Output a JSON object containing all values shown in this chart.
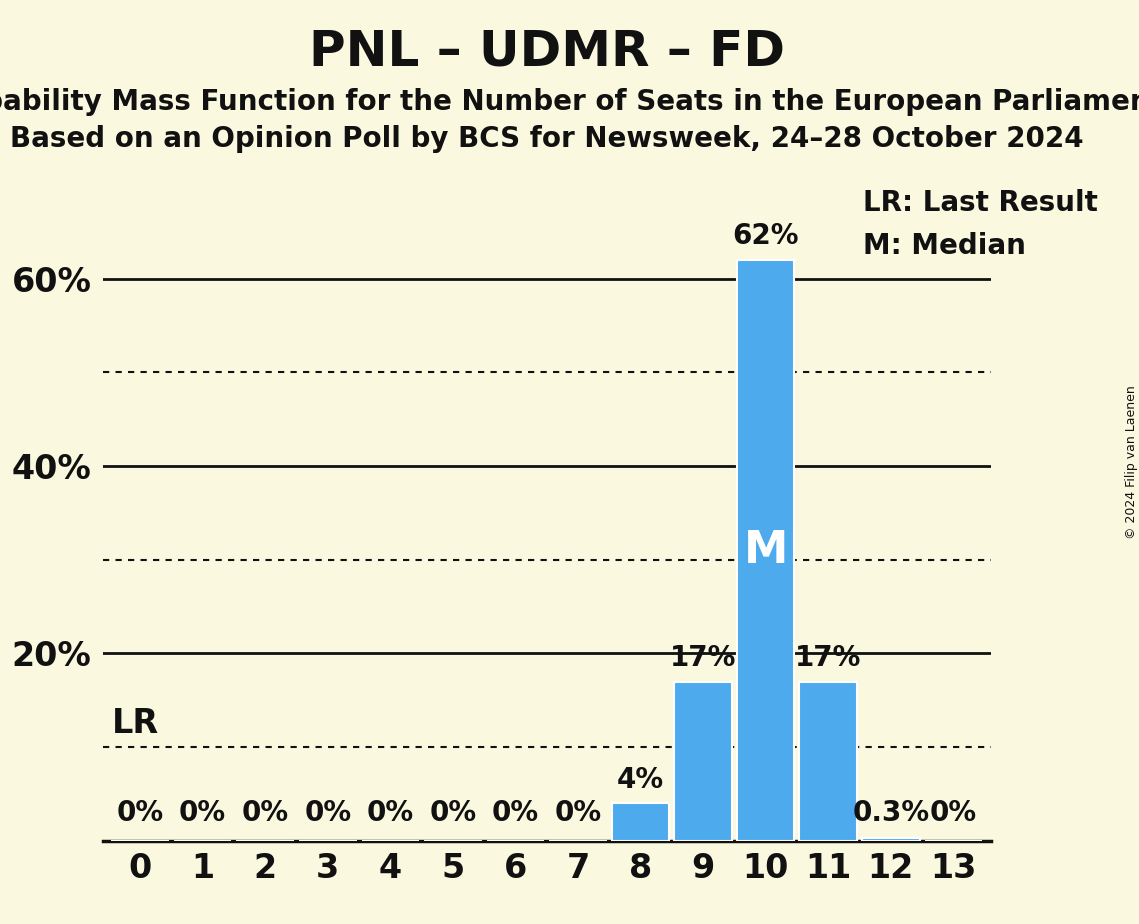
{
  "title": "PNL – UDMR – FD",
  "subtitle1": "Probability Mass Function for the Number of Seats in the European Parliament",
  "subtitle2": "Based on an Opinion Poll by BCS for Newsweek, 24–28 October 2024",
  "copyright": "© 2024 Filip van Laenen",
  "categories": [
    0,
    1,
    2,
    3,
    4,
    5,
    6,
    7,
    8,
    9,
    10,
    11,
    12,
    13
  ],
  "values": [
    0,
    0,
    0,
    0,
    0,
    0,
    0,
    0,
    4,
    17,
    62,
    17,
    0.3,
    0
  ],
  "bar_color": "#4DAAED",
  "background_color": "#FAF9E0",
  "median_seat": 10,
  "lr_seat": 9,
  "ylim": [
    0,
    70
  ],
  "solid_lines": [
    20,
    40,
    60
  ],
  "dotted_lines": [
    10,
    30,
    50
  ],
  "legend_lr": "LR: Last Result",
  "legend_m": "M: Median",
  "bar_labels": {
    "0": "0%",
    "1": "0%",
    "2": "0%",
    "3": "0%",
    "4": "0%",
    "5": "0%",
    "6": "0%",
    "7": "0%",
    "8": "4%",
    "9": "17%",
    "10": "62%",
    "11": "17%",
    "12": "0.3%",
    "13": "0%"
  },
  "ytick_display": {
    "0": "",
    "10": "",
    "20": "20%",
    "30": "",
    "40": "40%",
    "50": "",
    "60": "60%",
    "70": ""
  },
  "title_fontsize": 36,
  "subtitle_fontsize": 20,
  "tick_fontsize": 24,
  "label_fontsize": 20,
  "legend_fontsize": 20
}
